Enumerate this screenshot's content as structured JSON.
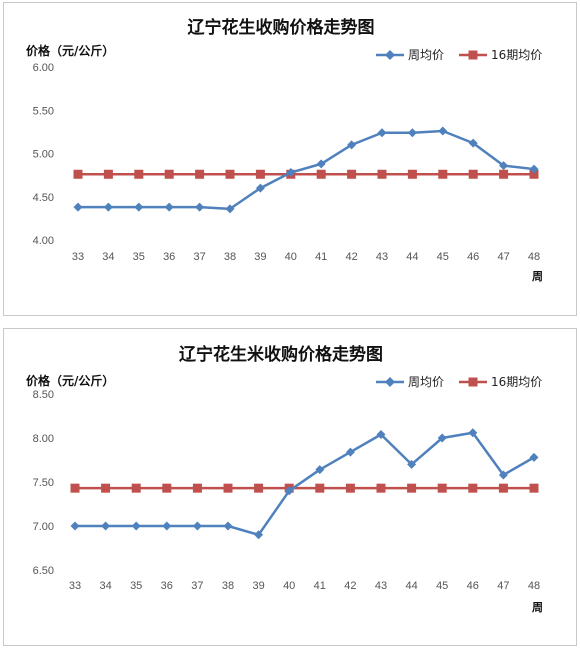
{
  "chart_data": [
    {
      "type": "line",
      "title": "辽宁花生收购价格走势图",
      "ylabel": "价格（元/公斤）",
      "xlabel": "周",
      "ylim": [
        4.0,
        6.0
      ],
      "yticks": [
        "6.00",
        "5.50",
        "5.00",
        "4.50",
        "4.00"
      ],
      "categories": [
        "33",
        "34",
        "35",
        "36",
        "37",
        "38",
        "39",
        "40",
        "41",
        "42",
        "43",
        "44",
        "45",
        "46",
        "47",
        "48"
      ],
      "grid": false,
      "legend_position": "top-right",
      "series": [
        {
          "name": "周均价",
          "color": "#4f81bd",
          "marker": "diamond",
          "values": [
            4.38,
            4.38,
            4.38,
            4.38,
            4.38,
            4.36,
            4.6,
            4.78,
            4.88,
            5.1,
            5.24,
            5.24,
            5.26,
            5.12,
            4.86,
            4.82
          ]
        },
        {
          "name": "16期均价",
          "color": "#c0504d",
          "marker": "square",
          "values": [
            4.76,
            4.76,
            4.76,
            4.76,
            4.76,
            4.76,
            4.76,
            4.76,
            4.76,
            4.76,
            4.76,
            4.76,
            4.76,
            4.76,
            4.76,
            4.76
          ]
        }
      ]
    },
    {
      "type": "line",
      "title": "辽宁花生米收购价格走势图",
      "ylabel": "价格（元/公斤）",
      "xlabel": "周",
      "ylim": [
        6.5,
        8.5
      ],
      "yticks": [
        "8.50",
        "8.00",
        "7.50",
        "7.00",
        "6.50"
      ],
      "categories": [
        "33",
        "34",
        "35",
        "36",
        "37",
        "38",
        "39",
        "40",
        "41",
        "42",
        "43",
        "44",
        "45",
        "46",
        "47",
        "48"
      ],
      "grid": false,
      "legend_position": "top-right",
      "series": [
        {
          "name": "周均价",
          "color": "#4f81bd",
          "marker": "diamond",
          "values": [
            7.0,
            7.0,
            7.0,
            7.0,
            7.0,
            7.0,
            6.9,
            7.4,
            7.64,
            7.84,
            8.04,
            7.7,
            8.0,
            8.06,
            7.58,
            7.78
          ]
        },
        {
          "name": "16期均价",
          "color": "#c0504d",
          "marker": "square",
          "values": [
            7.43,
            7.43,
            7.43,
            7.43,
            7.43,
            7.43,
            7.43,
            7.43,
            7.43,
            7.43,
            7.43,
            7.43,
            7.43,
            7.43,
            7.43,
            7.43
          ]
        }
      ]
    }
  ]
}
